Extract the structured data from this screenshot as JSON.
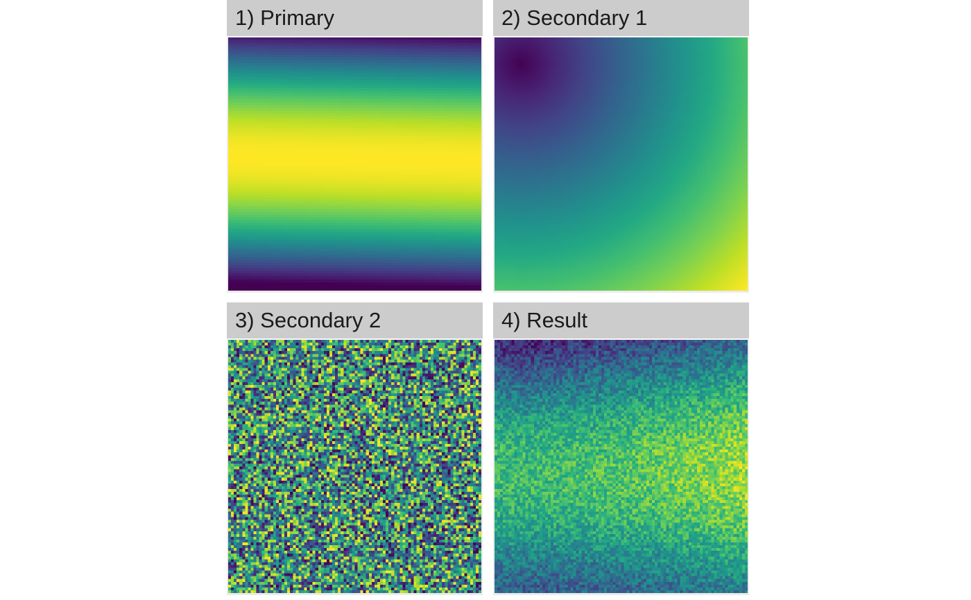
{
  "chart_data": [
    {
      "type": "heatmap",
      "title": "1) Primary",
      "grid_size": 90,
      "pattern": "horizontal band: intensity peaks at row ~0.47 (yellow) and falls to 0 (dark purple) at top and bottom edges",
      "colormap": "viridis",
      "value_range": [
        0,
        1
      ]
    },
    {
      "type": "heatmap",
      "title": "2) Secondary 1",
      "grid_size": 90,
      "pattern": "radial gradient: minimum (dark purple) near upper-left (col ~0.1, row ~0.1), increasing with distance to maximum (yellow) at bottom-right corner",
      "colormap": "viridis",
      "value_range": [
        0,
        1
      ]
    },
    {
      "type": "heatmap",
      "title": "3) Secondary 2",
      "grid_size": 90,
      "pattern": "uniform random noise over full range",
      "colormap": "viridis",
      "value_range": [
        0,
        1
      ]
    },
    {
      "type": "heatmap",
      "title": "4) Result",
      "grid_size": 90,
      "pattern": "noisy combination: darkest at top-left, brightest band around row ~0.5 toward the right side",
      "colormap": "viridis",
      "value_range": [
        0,
        1
      ]
    }
  ],
  "colors": {
    "strip_background": "#cccccc",
    "panel_background": "#ebebeb",
    "viridis_low": "#440154",
    "viridis_mid": "#21918c",
    "viridis_high": "#fde725"
  }
}
